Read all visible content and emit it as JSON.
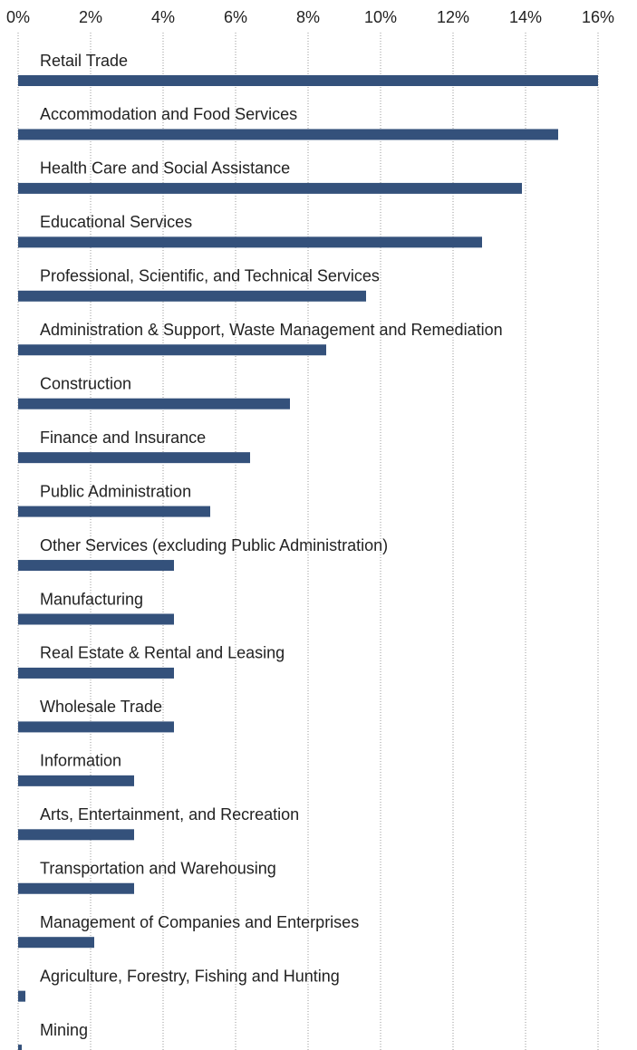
{
  "chart_data": {
    "type": "bar",
    "orientation": "horizontal",
    "categories": [
      "Retail Trade",
      "Accommodation and Food Services",
      "Health Care and Social Assistance",
      "Educational Services",
      "Professional, Scientific, and Technical Services",
      "Administration & Support, Waste Management and Remediation",
      "Construction",
      "Finance and Insurance",
      "Public Administration",
      "Other Services (excluding Public Administration)",
      "Manufacturing",
      "Real Estate & Rental and Leasing",
      "Wholesale Trade",
      "Information",
      "Arts, Entertainment, and Recreation",
      "Transportation and Warehousing",
      "Management of Companies and Enterprises",
      "Agriculture, Forestry, Fishing and Hunting",
      "Mining"
    ],
    "values": [
      16.0,
      14.9,
      13.9,
      12.8,
      9.6,
      8.5,
      7.5,
      6.4,
      5.3,
      4.3,
      4.3,
      4.3,
      4.3,
      3.2,
      3.2,
      3.2,
      2.1,
      0.2,
      0.1
    ],
    "color": "#34517b",
    "xlim": [
      0,
      16
    ],
    "xticks": [
      {
        "value": 0,
        "label": "0%"
      },
      {
        "value": 2,
        "label": "2%"
      },
      {
        "value": 4,
        "label": "4%"
      },
      {
        "value": 6,
        "label": "6%"
      },
      {
        "value": 8,
        "label": "8%"
      },
      {
        "value": 10,
        "label": "10%"
      },
      {
        "value": 12,
        "label": "12%"
      },
      {
        "value": 14,
        "label": "14%"
      },
      {
        "value": 16,
        "label": "16%"
      }
    ],
    "grid": true
  }
}
